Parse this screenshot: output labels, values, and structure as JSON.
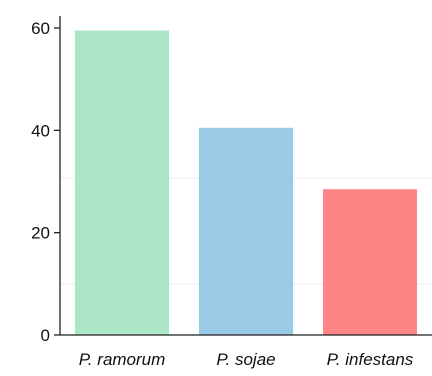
{
  "chart_data": {
    "type": "bar",
    "categories": [
      "P. ramorum",
      "P. sojae",
      "P. infestans"
    ],
    "values": [
      59.5,
      40.5,
      28.5
    ],
    "colors": [
      "#abe7c6",
      "#99cbe6",
      "#fd8585"
    ],
    "yticks": [
      "0",
      "20",
      "40",
      "60"
    ],
    "ylim": [
      0,
      60
    ],
    "grid": false,
    "title": "",
    "xlabel": "",
    "ylabel": ""
  }
}
